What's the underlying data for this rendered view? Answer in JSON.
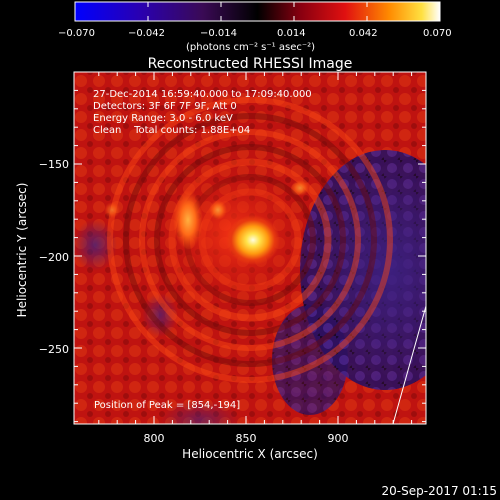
{
  "colorbar": {
    "ticks": [
      "−0.070",
      "−0.042",
      "−0.014",
      "0.014",
      "0.042",
      "0.070"
    ],
    "unit_label": "(photons cm⁻² s⁻¹ asec⁻²)",
    "range": [
      -0.07,
      0.07
    ]
  },
  "title": "Reconstructed RHESSI Image",
  "info": {
    "time_range": "27-Dec-2014 16:59:40.000 to 17:09:40.000",
    "detectors": "Detectors: 3F 6F 7F 9F, Att 0",
    "energy": "Energy Range: 3.0 - 6.0 keV",
    "clean": "Clean    Total counts: 1.88E+04"
  },
  "peak_label": "Position of Peak = [854,-194]",
  "axes": {
    "xlabel": "Heliocentric X (arcsec)",
    "ylabel": "Heliocentric Y (arcsec)",
    "x_ticks": [
      "800",
      "850",
      "900"
    ],
    "y_ticks": [
      "−150",
      "−200",
      "−250"
    ]
  },
  "footer_timestamp": "20-Sep-2017 01:15",
  "colors": {
    "background": "#000000",
    "peak": "#fff8b0",
    "positive": "#d01810",
    "negative": "#3a1a70"
  }
}
